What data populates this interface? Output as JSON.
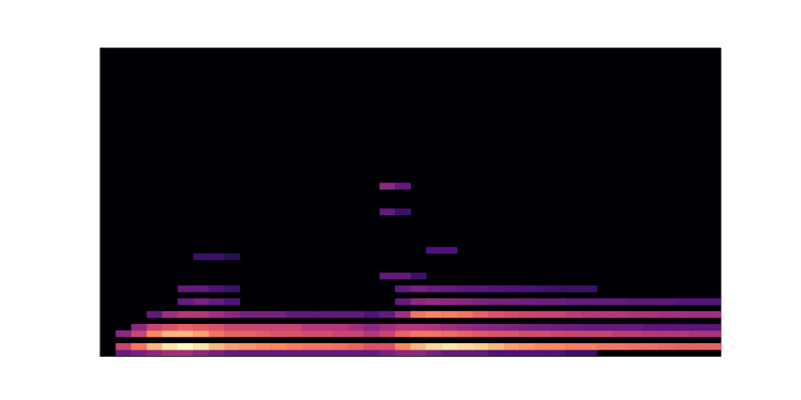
{
  "chart_data": {
    "type": "heatmap",
    "xlim": [
      0,
      40
    ],
    "ylim": [
      0,
      48
    ],
    "tick_labels": false,
    "color_range": [
      0,
      1
    ],
    "runs": [
      {
        "bin": 0,
        "start": 1,
        "values": [
          0.3,
          0.35,
          0.4,
          0.45,
          0.45,
          0.4,
          0.35,
          0.3,
          0.3,
          0.3,
          0.3,
          0.3,
          0.3,
          0.3,
          0.3,
          0.3,
          0.3
        ]
      },
      {
        "bin": 1,
        "start": 1,
        "values": [
          0.55,
          0.7,
          0.85,
          0.95,
          1.0,
          0.95,
          0.85,
          0.8,
          0.78,
          0.75,
          0.75,
          0.72,
          0.7,
          0.7,
          0.68,
          0.65,
          0.6
        ]
      },
      {
        "bin": 3,
        "start": 1,
        "values": [
          0.4,
          0.55,
          0.75,
          0.85,
          0.85,
          0.8,
          0.7,
          0.65,
          0.65,
          0.62,
          0.6,
          0.6,
          0.58,
          0.58,
          0.55,
          0.55,
          0.5
        ]
      },
      {
        "bin": 4,
        "start": 2,
        "values": [
          0.4,
          0.55,
          0.6,
          0.65,
          0.62,
          0.6,
          0.55,
          0.55,
          0.55,
          0.55,
          0.55,
          0.5,
          0.5,
          0.5,
          0.45,
          0.4
        ]
      },
      {
        "bin": 6,
        "start": 3,
        "values": [
          0.3,
          0.45,
          0.5,
          0.5,
          0.45,
          0.4,
          0.35,
          0.35,
          0.35,
          0.3,
          0.3,
          0.3,
          0.3,
          0.3,
          0.25
        ]
      },
      {
        "bin": 8,
        "start": 5,
        "values": [
          0.3,
          0.35,
          0.3,
          0.25
        ]
      },
      {
        "bin": 10,
        "start": 5,
        "values": [
          0.3,
          0.3,
          0.25,
          0.2
        ]
      },
      {
        "bin": 15,
        "start": 6,
        "values": [
          0.2,
          0.2,
          0.15
        ]
      },
      {
        "bin": 0,
        "start": 18,
        "values": [
          0.35,
          0.4,
          0.4,
          0.35,
          0.3,
          0.3,
          0.3,
          0.25,
          0.25,
          0.25,
          0.25,
          0.25,
          0.2,
          0.2
        ]
      },
      {
        "bin": 1,
        "start": 18,
        "values": [
          0.6,
          0.75,
          0.85,
          0.92,
          0.95,
          0.92,
          0.9,
          0.85,
          0.8,
          0.78,
          0.75,
          0.75,
          0.72,
          0.72,
          0.7,
          0.7,
          0.68,
          0.68,
          0.66,
          0.65,
          0.65,
          0.65
        ]
      },
      {
        "bin": 3,
        "start": 18,
        "values": [
          0.55,
          0.65,
          0.7,
          0.7,
          0.68,
          0.65,
          0.62,
          0.6,
          0.6,
          0.58,
          0.58,
          0.56,
          0.55,
          0.55,
          0.55,
          0.52,
          0.52,
          0.5,
          0.5,
          0.5,
          0.48,
          0.48
        ]
      },
      {
        "bin": 4,
        "start": 18,
        "values": [
          0.45,
          0.5,
          0.5,
          0.48,
          0.45,
          0.42,
          0.4,
          0.38,
          0.36,
          0.35,
          0.34,
          0.33,
          0.32,
          0.3,
          0.3,
          0.3,
          0.3,
          0.28,
          0.28,
          0.28,
          0.28,
          0.28
        ]
      },
      {
        "bin": 6,
        "start": 18,
        "values": [
          0.3,
          0.45,
          0.7,
          0.75,
          0.72,
          0.7,
          0.65,
          0.6,
          0.58,
          0.56,
          0.55,
          0.55,
          0.52,
          0.5,
          0.5,
          0.5,
          0.48,
          0.48,
          0.46,
          0.46,
          0.45,
          0.45
        ]
      },
      {
        "bin": 8,
        "start": 19,
        "values": [
          0.3,
          0.4,
          0.42,
          0.4,
          0.38,
          0.36,
          0.35,
          0.34,
          0.33,
          0.32,
          0.32,
          0.3,
          0.3,
          0.3,
          0.3,
          0.28,
          0.28,
          0.28,
          0.27,
          0.27,
          0.26
        ]
      },
      {
        "bin": 10,
        "start": 19,
        "values": [
          0.3,
          0.35,
          0.32,
          0.3,
          0.28,
          0.28,
          0.26,
          0.25,
          0.24,
          0.22,
          0.2,
          0.2,
          0.2
        ]
      },
      {
        "bin": 12,
        "start": 18,
        "values": [
          0.3,
          0.3,
          0.2
        ]
      },
      {
        "bin": 16,
        "start": 21,
        "values": [
          0.25,
          0.25
        ]
      },
      {
        "bin": 22,
        "start": 18,
        "values": [
          0.3,
          0.2
        ]
      },
      {
        "bin": 26,
        "start": 18,
        "values": [
          0.4,
          0.3
        ]
      }
    ]
  }
}
